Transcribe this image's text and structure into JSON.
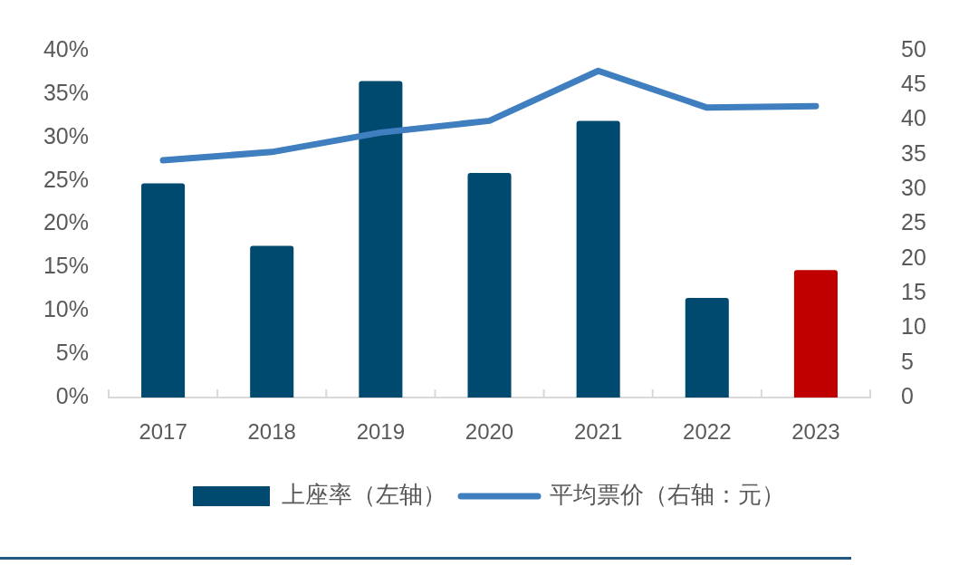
{
  "chart_data": {
    "type": "bar",
    "categories": [
      "2017",
      "2018",
      "2019",
      "2020",
      "2021",
      "2022",
      "2023"
    ],
    "series": [
      {
        "name": "上座率（左轴）",
        "color": "#004a70",
        "colors": [
          "#004a70",
          "#004a70",
          "#004a70",
          "#004a70",
          "#004a70",
          "#004a70",
          "#c00000"
        ],
        "values": [
          24.7,
          17.5,
          36.5,
          25.9,
          31.9,
          11.5,
          14.7
        ]
      },
      {
        "name": "平均票价（右轴：元）",
        "type": "line",
        "axis": "y2",
        "color": "#3f7fbf",
        "values": [
          34.2,
          35.4,
          38.2,
          39.9,
          47.1,
          41.8,
          42.0
        ]
      }
    ],
    "ylim": [
      0,
      40
    ],
    "yticks": [
      {
        "value": 0,
        "label": "0%"
      },
      {
        "value": 5,
        "label": "5%"
      },
      {
        "value": 10,
        "label": "10%"
      },
      {
        "value": 15,
        "label": "15%"
      },
      {
        "value": 20,
        "label": "20%"
      },
      {
        "value": 25,
        "label": "25%"
      },
      {
        "value": 30,
        "label": "30%"
      },
      {
        "value": 35,
        "label": "35%"
      },
      {
        "value": 40,
        "label": "40%"
      }
    ],
    "y2lim": [
      0,
      50
    ],
    "y2ticks": [
      0,
      5,
      10,
      15,
      20,
      25,
      30,
      35,
      40,
      45,
      50
    ],
    "legend": "bottom"
  }
}
